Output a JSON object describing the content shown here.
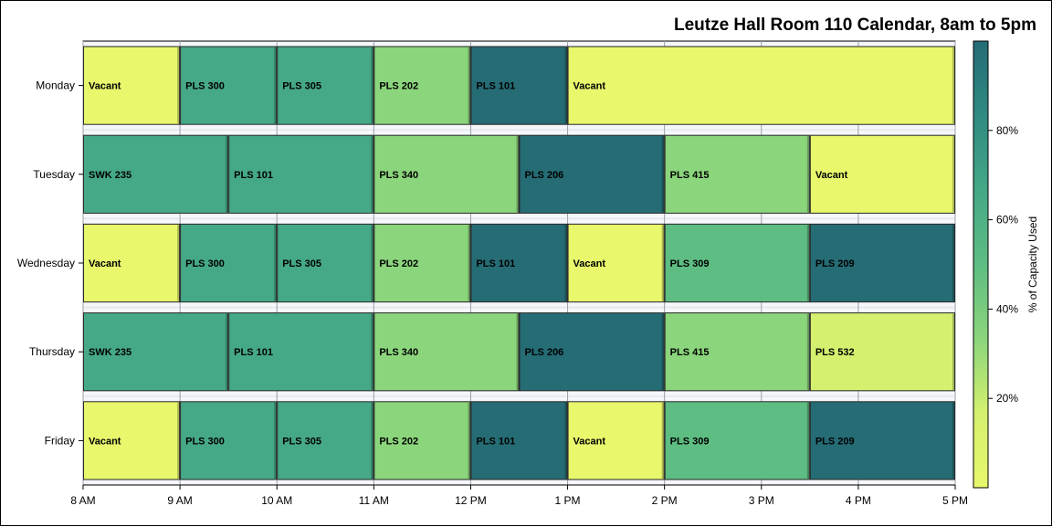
{
  "chart_data": {
    "type": "bar",
    "orientation": "horizontal-timeline",
    "title": "Leutze Hall Room 110 Calendar, 8am to 5pm",
    "categories": [
      "Monday",
      "Tuesday",
      "Wednesday",
      "Thursday",
      "Friday"
    ],
    "x_ticks": [
      {
        "value": 8,
        "label": "8 AM"
      },
      {
        "value": 9,
        "label": "9 AM"
      },
      {
        "value": 10,
        "label": "10 AM"
      },
      {
        "value": 11,
        "label": "11 AM"
      },
      {
        "value": 12,
        "label": "12 PM"
      },
      {
        "value": 13,
        "label": "1 PM"
      },
      {
        "value": 14,
        "label": "2 PM"
      },
      {
        "value": 15,
        "label": "3 PM"
      },
      {
        "value": 16,
        "label": "4 PM"
      },
      {
        "value": 17,
        "label": "5 PM"
      }
    ],
    "xlim": [
      8,
      17
    ],
    "color_axis": {
      "label": "% of Capacity Used",
      "range": [
        0,
        100
      ],
      "ticks": [
        {
          "value": 20,
          "label": "20%"
        },
        {
          "value": 40,
          "label": "40%"
        },
        {
          "value": 60,
          "label": "60%"
        },
        {
          "value": 80,
          "label": "80%"
        }
      ],
      "colors": [
        "#e8f76c",
        "#d4f06e",
        "#8bd57c",
        "#5ebd82",
        "#45a886",
        "#2f8a82",
        "#256c75"
      ]
    },
    "rows": [
      {
        "day": "Monday",
        "events": [
          {
            "label": "Vacant",
            "start": 8,
            "end": 9,
            "capacity": 0
          },
          {
            "label": "PLS 300",
            "start": 9,
            "end": 10,
            "capacity": 66
          },
          {
            "label": "PLS 305",
            "start": 10,
            "end": 11,
            "capacity": 66
          },
          {
            "label": "PLS 202",
            "start": 11,
            "end": 12,
            "capacity": 33
          },
          {
            "label": "PLS 101",
            "start": 12,
            "end": 13,
            "capacity": 96
          },
          {
            "label": "Vacant",
            "start": 13,
            "end": 17,
            "capacity": 0
          }
        ]
      },
      {
        "day": "Tuesday",
        "events": [
          {
            "label": "SWK 235",
            "start": 8,
            "end": 9.5,
            "capacity": 66
          },
          {
            "label": "PLS 101",
            "start": 9.5,
            "end": 11,
            "capacity": 66
          },
          {
            "label": "PLS 340",
            "start": 11,
            "end": 12.5,
            "capacity": 33
          },
          {
            "label": "PLS 206",
            "start": 12.5,
            "end": 14,
            "capacity": 96
          },
          {
            "label": "PLS 415",
            "start": 14,
            "end": 15.5,
            "capacity": 33
          },
          {
            "label": "Vacant",
            "start": 15.5,
            "end": 17,
            "capacity": 0
          }
        ]
      },
      {
        "day": "Wednesday",
        "events": [
          {
            "label": "Vacant",
            "start": 8,
            "end": 9,
            "capacity": 0
          },
          {
            "label": "PLS 300",
            "start": 9,
            "end": 10,
            "capacity": 66
          },
          {
            "label": "PLS 305",
            "start": 10,
            "end": 11,
            "capacity": 66
          },
          {
            "label": "PLS 202",
            "start": 11,
            "end": 12,
            "capacity": 33
          },
          {
            "label": "PLS 101",
            "start": 12,
            "end": 13,
            "capacity": 96
          },
          {
            "label": "Vacant",
            "start": 13,
            "end": 14,
            "capacity": 0
          },
          {
            "label": "PLS 309",
            "start": 14,
            "end": 15.5,
            "capacity": 50
          },
          {
            "label": "PLS 209",
            "start": 15.5,
            "end": 17,
            "capacity": 96
          }
        ]
      },
      {
        "day": "Thursday",
        "events": [
          {
            "label": "SWK 235",
            "start": 8,
            "end": 9.5,
            "capacity": 66
          },
          {
            "label": "PLS 101",
            "start": 9.5,
            "end": 11,
            "capacity": 66
          },
          {
            "label": "PLS 340",
            "start": 11,
            "end": 12.5,
            "capacity": 33
          },
          {
            "label": "PLS 206",
            "start": 12.5,
            "end": 14,
            "capacity": 96
          },
          {
            "label": "PLS 415",
            "start": 14,
            "end": 15.5,
            "capacity": 33
          },
          {
            "label": "PLS 532",
            "start": 15.5,
            "end": 17,
            "capacity": 10
          }
        ]
      },
      {
        "day": "Friday",
        "events": [
          {
            "label": "Vacant",
            "start": 8,
            "end": 9,
            "capacity": 0
          },
          {
            "label": "PLS 300",
            "start": 9,
            "end": 10,
            "capacity": 66
          },
          {
            "label": "PLS 305",
            "start": 10,
            "end": 11,
            "capacity": 66
          },
          {
            "label": "PLS 202",
            "start": 11,
            "end": 12,
            "capacity": 33
          },
          {
            "label": "PLS 101",
            "start": 12,
            "end": 13,
            "capacity": 96
          },
          {
            "label": "Vacant",
            "start": 13,
            "end": 14,
            "capacity": 0
          },
          {
            "label": "PLS 309",
            "start": 14,
            "end": 15.5,
            "capacity": 50
          },
          {
            "label": "PLS 209",
            "start": 15.5,
            "end": 17,
            "capacity": 96
          }
        ]
      }
    ],
    "legend_position": "right",
    "grid": true
  }
}
